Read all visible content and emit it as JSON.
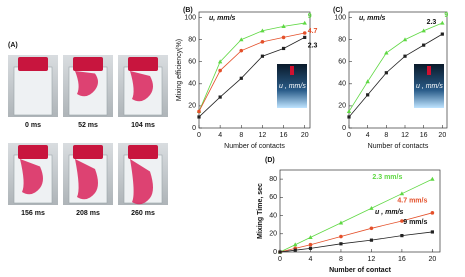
{
  "photo_panel": {
    "label": "(A)",
    "times": [
      "0 ms",
      "52 ms",
      "104 ms",
      "156 ms",
      "208 ms",
      "260 ms"
    ]
  },
  "chart_data": [
    {
      "type": "line",
      "panel_label": "(B)",
      "legend_title": "u, mm/s",
      "inset_label": "u , mm/s",
      "x_label": "Number of contacts",
      "y_label": "Mixing efficiency(%)",
      "x": [
        0,
        4,
        8,
        12,
        16,
        20
      ],
      "xlim": [
        0,
        21
      ],
      "xticks": [
        0,
        4,
        8,
        12,
        16,
        20
      ],
      "ylim": [
        0,
        105
      ],
      "yticks": [
        0,
        20,
        40,
        60,
        80,
        100
      ],
      "series": [
        {
          "name": "9",
          "color": "#5fd843",
          "values": [
            15,
            60,
            80,
            88,
            92,
            95
          ]
        },
        {
          "name": "4.7",
          "color": "#e4502a",
          "values": [
            15,
            52,
            70,
            78,
            82,
            86
          ]
        },
        {
          "name": "2.3",
          "color": "#222222",
          "values": [
            10,
            28,
            45,
            65,
            72,
            82
          ]
        }
      ]
    },
    {
      "type": "line",
      "panel_label": "(C)",
      "legend_title": "u, mm/s",
      "inset_label": "u , mm/s",
      "x_label": "Number of contacts",
      "x": [
        0,
        4,
        8,
        12,
        16,
        20
      ],
      "xlim": [
        0,
        21
      ],
      "xticks": [
        0,
        4,
        8,
        12,
        16,
        20
      ],
      "ylim": [
        0,
        105
      ],
      "yticks": [
        0,
        20,
        40,
        60,
        80,
        100
      ],
      "series": [
        {
          "name": "9",
          "color": "#5fd843",
          "values": [
            15,
            42,
            68,
            80,
            88,
            95
          ]
        },
        {
          "name": "2.3",
          "color": "#222222",
          "values": [
            10,
            30,
            50,
            65,
            75,
            85
          ]
        }
      ]
    },
    {
      "type": "line",
      "panel_label": "(D)",
      "legend_title": "u , mm/s",
      "x_label": "Number of contact",
      "y_label": "Mixing Time, sec",
      "x": [
        0,
        2,
        4,
        8,
        12,
        16,
        20
      ],
      "xlim": [
        0,
        21
      ],
      "xticks": [
        0,
        4,
        8,
        12,
        16,
        20
      ],
      "ylim": [
        0,
        90
      ],
      "yticks": [
        0,
        20,
        40,
        60,
        80
      ],
      "series": [
        {
          "name": "2.3 mm/s",
          "color": "#5fd843",
          "values": [
            0,
            8,
            16,
            32,
            48,
            64,
            80
          ]
        },
        {
          "name": "4.7 mm/s",
          "color": "#e4502a",
          "values": [
            0,
            4,
            8,
            17,
            26,
            34,
            43
          ]
        },
        {
          "name": "9 mm/s",
          "color": "#222222",
          "values": [
            0,
            2,
            4,
            9,
            13,
            18,
            22
          ]
        }
      ]
    }
  ]
}
